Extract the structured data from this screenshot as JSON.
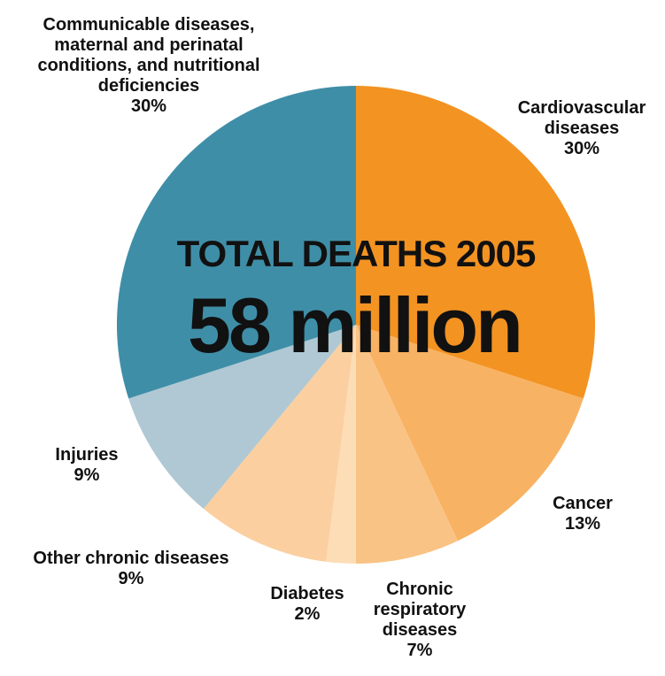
{
  "center": {
    "line1": "TOTAL DEATHS 2005",
    "line2": "58 million"
  },
  "chart_data": {
    "type": "pie",
    "start": "12 o'clock",
    "direction": "clockwise",
    "slices": [
      {
        "label_lines": [
          "Cardiovascular",
          "diseases",
          "30%"
        ],
        "value": 30,
        "color": "#F39322"
      },
      {
        "label_lines": [
          "Cancer",
          "13%"
        ],
        "value": 13,
        "color": "#F8B263"
      },
      {
        "label_lines": [
          "Chronic",
          "respiratory",
          "diseases",
          "7%"
        ],
        "value": 7,
        "color": "#F9C385"
      },
      {
        "label_lines": [
          "Diabetes",
          "2%"
        ],
        "value": 2,
        "color": "#FCDDB6"
      },
      {
        "label_lines": [
          "Other chronic diseases",
          "9%"
        ],
        "value": 9,
        "color": "#FBCFA0"
      },
      {
        "label_lines": [
          "Injuries",
          "9%"
        ],
        "value": 9,
        "color": "#AFC8D3"
      },
      {
        "label_lines": [
          "Communicable diseases,",
          "maternal and perinatal",
          "conditions, and nutritional",
          "deficiencies",
          "30%"
        ],
        "value": 30,
        "color": "#3F8EA7"
      }
    ]
  }
}
